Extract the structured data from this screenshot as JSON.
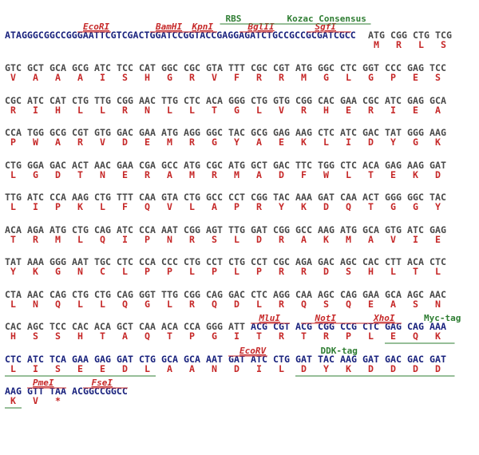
{
  "header": {
    "sequence": "ATAGGGCGGCCGGGAATTCGTCGACTGGATCCGGTACCGAGGAGATCTGCCGCCGCGATCGCC",
    "codons": [
      "ATG",
      "CGG",
      "CTG",
      "TCG"
    ],
    "amino_acids": [
      "M",
      "R",
      "L",
      "S"
    ]
  },
  "rows": [
    {
      "codons": [
        "GTC",
        "GCT",
        "GCA",
        "GCG",
        "ATC",
        "TCC",
        "CAT",
        "GGC",
        "CGC",
        "GTA",
        "TTT",
        "CGC",
        "CGT",
        "ATG",
        "GGC",
        "CTC",
        "GGT",
        "CCC",
        "GAG",
        "TCC"
      ],
      "amino_acids": [
        "V",
        "A",
        "A",
        "A",
        "I",
        "S",
        "H",
        "G",
        "R",
        "V",
        "F",
        "R",
        "R",
        "M",
        "G",
        "L",
        "G",
        "P",
        "E",
        "S"
      ]
    },
    {
      "codons": [
        "CGC",
        "ATC",
        "CAT",
        "CTG",
        "TTG",
        "CGG",
        "AAC",
        "TTG",
        "CTC",
        "ACA",
        "GGG",
        "CTG",
        "GTG",
        "CGG",
        "CAC",
        "GAA",
        "CGC",
        "ATC",
        "GAG",
        "GCA"
      ],
      "amino_acids": [
        "R",
        "I",
        "H",
        "L",
        "L",
        "R",
        "N",
        "L",
        "L",
        "T",
        "G",
        "L",
        "V",
        "R",
        "H",
        "E",
        "R",
        "I",
        "E",
        "A"
      ]
    },
    {
      "codons": [
        "CCA",
        "TGG",
        "GCG",
        "CGT",
        "GTG",
        "GAC",
        "GAA",
        "ATG",
        "AGG",
        "GGC",
        "TAC",
        "GCG",
        "GAG",
        "AAG",
        "CTC",
        "ATC",
        "GAC",
        "TAT",
        "GGG",
        "AAG"
      ],
      "amino_acids": [
        "P",
        "W",
        "A",
        "R",
        "V",
        "D",
        "E",
        "M",
        "R",
        "G",
        "Y",
        "A",
        "E",
        "K",
        "L",
        "I",
        "D",
        "Y",
        "G",
        "K"
      ]
    },
    {
      "codons": [
        "CTG",
        "GGA",
        "GAC",
        "ACT",
        "AAC",
        "GAA",
        "CGA",
        "GCC",
        "ATG",
        "CGC",
        "ATG",
        "GCT",
        "GAC",
        "TTC",
        "TGG",
        "CTC",
        "ACA",
        "GAG",
        "AAG",
        "GAT"
      ],
      "amino_acids": [
        "L",
        "G",
        "D",
        "T",
        "N",
        "E",
        "R",
        "A",
        "M",
        "R",
        "M",
        "A",
        "D",
        "F",
        "W",
        "L",
        "T",
        "E",
        "K",
        "D"
      ]
    },
    {
      "codons": [
        "TTG",
        "ATC",
        "CCA",
        "AAG",
        "CTG",
        "TTT",
        "CAA",
        "GTA",
        "CTG",
        "GCC",
        "CCT",
        "CGG",
        "TAC",
        "AAA",
        "GAT",
        "CAA",
        "ACT",
        "GGG",
        "GGC",
        "TAC"
      ],
      "amino_acids": [
        "L",
        "I",
        "P",
        "K",
        "L",
        "F",
        "Q",
        "V",
        "L",
        "A",
        "P",
        "R",
        "Y",
        "K",
        "D",
        "Q",
        "T",
        "G",
        "G",
        "Y"
      ]
    },
    {
      "codons": [
        "ACA",
        "AGA",
        "ATG",
        "CTG",
        "CAG",
        "ATC",
        "CCA",
        "AAT",
        "CGG",
        "AGT",
        "TTG",
        "GAT",
        "CGG",
        "GCC",
        "AAG",
        "ATG",
        "GCA",
        "GTG",
        "ATC",
        "GAG"
      ],
      "amino_acids": [
        "T",
        "R",
        "M",
        "L",
        "Q",
        "I",
        "P",
        "N",
        "R",
        "S",
        "L",
        "D",
        "R",
        "A",
        "K",
        "M",
        "A",
        "V",
        "I",
        "E"
      ]
    },
    {
      "codons": [
        "TAT",
        "AAA",
        "GGG",
        "AAT",
        "TGC",
        "CTC",
        "CCA",
        "CCC",
        "CTG",
        "CCT",
        "CTG",
        "CCT",
        "CGC",
        "AGA",
        "GAC",
        "AGC",
        "CAC",
        "CTT",
        "ACA",
        "CTC"
      ],
      "amino_acids": [
        "Y",
        "K",
        "G",
        "N",
        "C",
        "L",
        "P",
        "P",
        "L",
        "P",
        "L",
        "P",
        "R",
        "R",
        "D",
        "S",
        "H",
        "L",
        "T",
        "L"
      ]
    },
    {
      "codons": [
        "CTA",
        "AAC",
        "CAG",
        "CTG",
        "CTG",
        "CAG",
        "GGT",
        "TTG",
        "CGG",
        "CAG",
        "GAC",
        "CTC",
        "AGG",
        "CAA",
        "AGC",
        "CAG",
        "GAA",
        "GCA",
        "AGC",
        "AAC"
      ],
      "amino_acids": [
        "L",
        "N",
        "Q",
        "L",
        "L",
        "Q",
        "G",
        "L",
        "R",
        "Q",
        "D",
        "L",
        "R",
        "Q",
        "S",
        "Q",
        "E",
        "A",
        "S",
        "N"
      ]
    },
    {
      "codons": [
        "CAC",
        "AGC",
        "TCC",
        "CAC",
        "ACA",
        "GCT",
        "CAA",
        "ACA",
        "CCA",
        "GGG",
        "ATT",
        "ACG",
        "CGT",
        "ACG",
        "CGG",
        "CCG",
        "CTC",
        "GAG",
        "CAG",
        "AAA"
      ],
      "amino_acids": [
        "H",
        "S",
        "S",
        "H",
        "T",
        "A",
        "Q",
        "T",
        "P",
        "G",
        "I",
        "T",
        "R",
        "T",
        "R",
        "P",
        "L",
        "E",
        "Q",
        "K"
      ]
    },
    {
      "codons": [
        "CTC",
        "ATC",
        "TCA",
        "GAA",
        "GAG",
        "GAT",
        "CTG",
        "GCA",
        "GCA",
        "AAT",
        "GAT",
        "ATC",
        "CTG",
        "GAT",
        "TAC",
        "AAG",
        "GAT",
        "GAC",
        "GAC",
        "GAT"
      ],
      "amino_acids": [
        "L",
        "I",
        "S",
        "E",
        "E",
        "D",
        "L",
        "A",
        "A",
        "N",
        "D",
        "I",
        "L",
        "D",
        "Y",
        "K",
        "D",
        "D",
        "D",
        "D"
      ]
    },
    {
      "codons": [
        "AAG",
        "GTT",
        "TAA"
      ],
      "amino_acids": [
        "K",
        "V",
        "*"
      ],
      "tail": "ACGGCCGGCC"
    }
  ],
  "features": [
    {
      "label": "EcoRI"
    },
    {
      "label": "BamHI"
    },
    {
      "label": "KpnI"
    },
    {
      "label": "BglII"
    },
    {
      "label": "SgfI"
    },
    {
      "label": "RBS"
    },
    {
      "label": "Kozac Consensus"
    },
    {
      "label": "MluI"
    },
    {
      "label": "NotI"
    },
    {
      "label": "XhoI"
    },
    {
      "label": "Myc-tag"
    },
    {
      "label": "EcoRV"
    },
    {
      "label": "DDK-tag"
    },
    {
      "label": "PmeI"
    },
    {
      "label": "FseI"
    }
  ]
}
